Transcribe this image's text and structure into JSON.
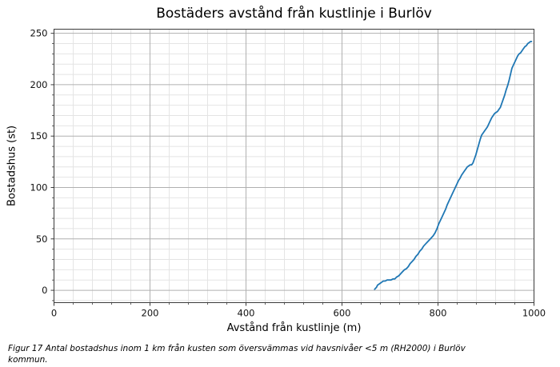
{
  "caption": "Figur 17 Antal bostadshus inom 1 km från kusten som översvämmas vid havsnivåer <5 m (RH2000) i Burlöv kommun.",
  "chart_data": {
    "type": "line",
    "title": "Bostäders avstånd från kustlinje i Burlöv",
    "xlabel": "Avstånd från kustlinje (m)",
    "ylabel": "Bostadshus (st)",
    "xlim": [
      0,
      1000
    ],
    "ylim": [
      -12,
      254
    ],
    "x_ticks": [
      0,
      200,
      400,
      600,
      800,
      1000
    ],
    "y_ticks": [
      0,
      50,
      100,
      150,
      200,
      250
    ],
    "x_minor_step": 40,
    "y_minor_step": 10,
    "grid": "both",
    "legend": "none",
    "line_color": "#1f77b4",
    "grid_major_color": "#b0b0b0",
    "grid_minor_color": "#e4e4e4",
    "spine_color": "#3a3a3a",
    "series": [
      {
        "name": "bostadshus-kumulativt",
        "x": [
          668,
          670,
          672,
          674,
          677,
          680,
          683,
          686,
          690,
          694,
          698,
          702,
          706,
          710,
          714,
          718,
          722,
          726,
          730,
          734,
          738,
          742,
          746,
          750,
          754,
          758,
          762,
          766,
          770,
          774,
          778,
          782,
          786,
          790,
          794,
          798,
          801,
          804,
          807,
          810,
          813,
          816,
          819,
          822,
          825,
          828,
          831,
          834,
          837,
          840,
          843,
          846,
          849,
          852,
          855,
          858,
          861,
          864,
          867,
          870,
          873,
          876,
          879,
          882,
          885,
          888,
          891,
          894,
          897,
          900,
          903,
          906,
          909,
          912,
          915,
          918,
          921,
          924,
          927,
          930,
          933,
          936,
          939,
          942,
          945,
          948,
          951,
          954,
          957,
          960,
          963,
          966,
          969,
          972,
          975,
          978,
          981,
          984,
          987,
          990,
          993,
          995
        ],
        "y": [
          1,
          2,
          3,
          5,
          6,
          7,
          8,
          9,
          9,
          10,
          10,
          10,
          11,
          11,
          13,
          14,
          16,
          18,
          20,
          21,
          23,
          26,
          28,
          30,
          33,
          35,
          38,
          40,
          43,
          45,
          47,
          49,
          51,
          53,
          56,
          60,
          64,
          67,
          70,
          73,
          76,
          79,
          83,
          86,
          89,
          92,
          95,
          98,
          101,
          104,
          107,
          109,
          112,
          114,
          116,
          118,
          120,
          121,
          122,
          122,
          124,
          128,
          132,
          137,
          142,
          147,
          151,
          153,
          155,
          157,
          159,
          162,
          165,
          168,
          170,
          172,
          173,
          174,
          176,
          178,
          182,
          186,
          190,
          195,
          199,
          204,
          210,
          216,
          219,
          222,
          225,
          228,
          230,
          231,
          233,
          235,
          237,
          238,
          240,
          241,
          242,
          242
        ]
      }
    ]
  }
}
